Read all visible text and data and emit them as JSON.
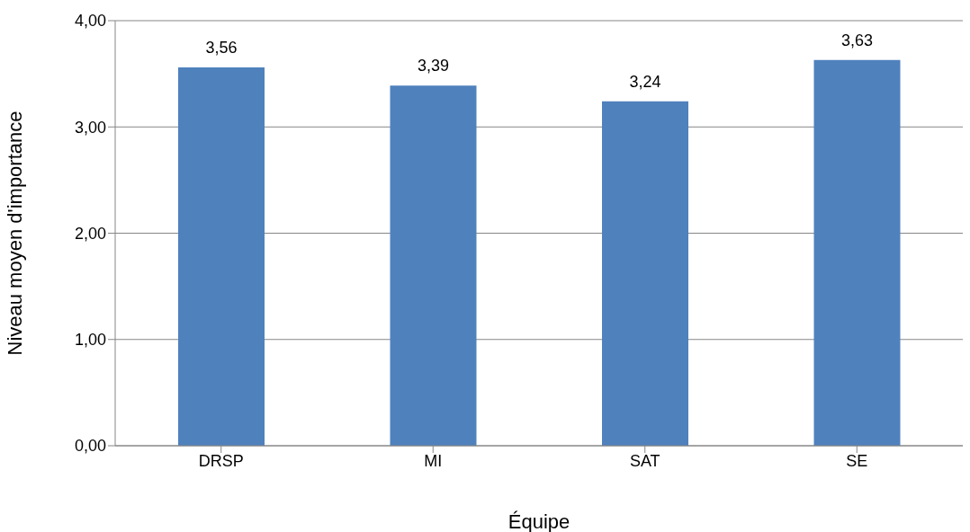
{
  "chart_data": {
    "type": "bar",
    "xlabel": "Équipe",
    "ylabel": "Niveau moyen d'importance",
    "categories": [
      "DRSP",
      "MI",
      "SAT",
      "SE"
    ],
    "values": [
      3.56,
      3.39,
      3.24,
      3.63
    ],
    "value_labels": [
      "3,56",
      "3,39",
      "3,24",
      "3,63"
    ],
    "color": "#4f81bd",
    "ylim": [
      0,
      4
    ],
    "yticks": [
      {
        "value": 0,
        "label": "0,00"
      },
      {
        "value": 1,
        "label": "1,00"
      },
      {
        "value": 2,
        "label": "2,00"
      },
      {
        "value": 3,
        "label": "3,00"
      },
      {
        "value": 4,
        "label": "4,00"
      }
    ],
    "grid": "y",
    "legend": false
  }
}
